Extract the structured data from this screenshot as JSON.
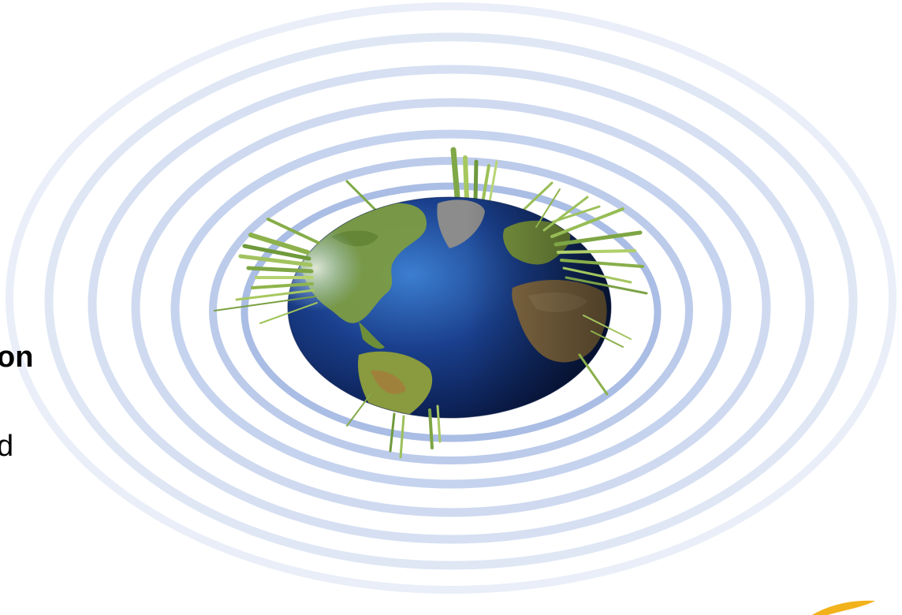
{
  "slide": {
    "text_bold": "on",
    "text_plain": "d"
  },
  "colors": {
    "ring": "#c7d6ee",
    "ring_inner": "#a9bde3",
    "ocean_dark": "#0c1f55",
    "ocean_light": "#2f6fc4",
    "land_green": "#7c9a3e",
    "land_brown": "#8a7047",
    "spike": "#8fb84c",
    "logo_swoosh": "#f2b21b"
  },
  "icons": {
    "globe": "globe-icon",
    "logo": "logo-swoosh-icon"
  }
}
